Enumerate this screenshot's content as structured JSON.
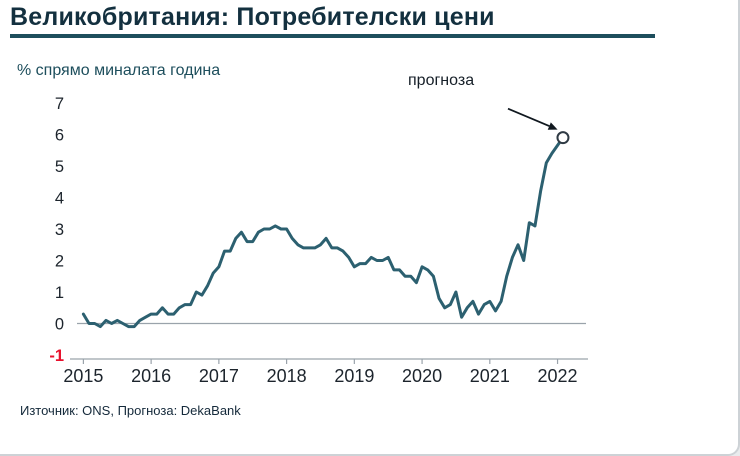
{
  "header": {
    "title": "Великобритания: Потребителски цени"
  },
  "chart": {
    "y_axis_label": "% спрямо миналата година",
    "annotation_label": "прогноза",
    "source": "Източник: ONS, Прогноза: DekaBank"
  },
  "chart_data": {
    "type": "line",
    "title": "Великобритания: Потребителски цени",
    "xlabel": "",
    "ylabel": "% спрямо миналата година",
    "grid": false,
    "legend": "none",
    "xlim": [
      2014.95,
      2022.42
    ],
    "ylim": [
      -1,
      7
    ],
    "x_ticks": [
      2015,
      2016,
      2017,
      2018,
      2019,
      2020,
      2021,
      2022
    ],
    "y_ticks": [
      7,
      6,
      5,
      4,
      3,
      2,
      1,
      0,
      -1
    ],
    "series": [
      {
        "name": "Потребителски цени, % спрямо миналата година",
        "x_start_year": 2015,
        "x_step": "month",
        "values": [
          0.3,
          0.0,
          0.0,
          -0.1,
          0.1,
          0.0,
          0.1,
          0.0,
          -0.1,
          -0.1,
          0.1,
          0.2,
          0.3,
          0.3,
          0.5,
          0.3,
          0.3,
          0.5,
          0.6,
          0.6,
          1.0,
          0.9,
          1.2,
          1.6,
          1.8,
          2.3,
          2.3,
          2.7,
          2.9,
          2.6,
          2.6,
          2.9,
          3.0,
          3.0,
          3.1,
          3.0,
          3.0,
          2.7,
          2.5,
          2.4,
          2.4,
          2.4,
          2.5,
          2.7,
          2.4,
          2.4,
          2.3,
          2.1,
          1.8,
          1.9,
          1.9,
          2.1,
          2.0,
          2.0,
          2.1,
          1.7,
          1.7,
          1.5,
          1.5,
          1.3,
          1.8,
          1.7,
          1.5,
          0.8,
          0.5,
          0.6,
          1.0,
          0.2,
          0.5,
          0.7,
          0.3,
          0.6,
          0.7,
          0.4,
          0.7,
          1.5,
          2.1,
          2.5,
          2.0,
          3.2,
          3.1,
          4.2,
          5.1,
          5.4
        ]
      }
    ],
    "forecast": {
      "x_year": 2022.08,
      "value": 5.9,
      "label": "прогноза"
    },
    "style": {
      "line": "#2c6070",
      "axis": "#9aa3ab",
      "tick_label": "#1c242c",
      "negative_tick": "#e8112d",
      "marker_stroke": "#2f3a44",
      "arrow": "#10181f",
      "title_color": "#13303f",
      "rule_color": "#1d4e5c"
    }
  }
}
